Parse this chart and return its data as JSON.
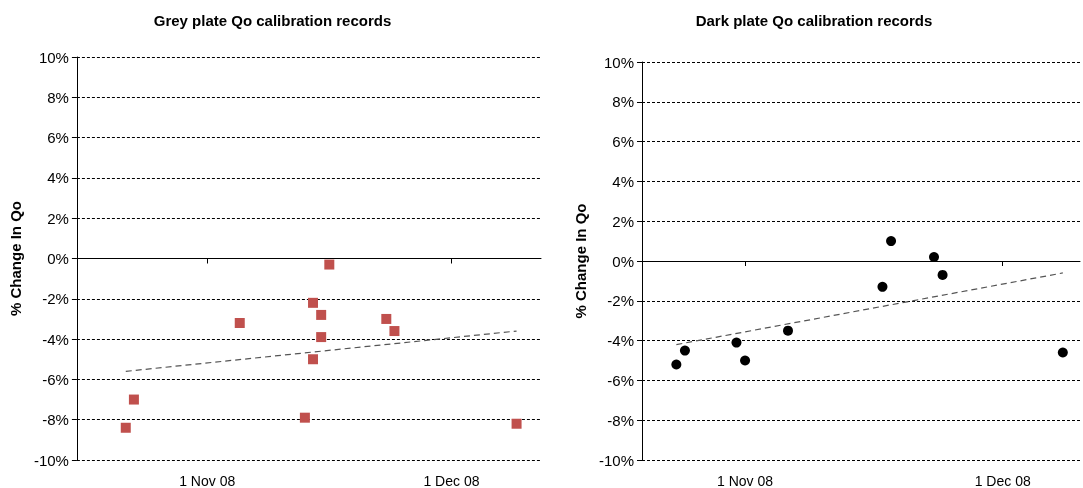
{
  "chart_data": [
    {
      "type": "scatter",
      "title": "Grey plate Qo calibration records",
      "ylabel": "% Change In Qo",
      "xlim": [
        "2008-10-16",
        "2008-12-12"
      ],
      "xticks": [
        {
          "value": "2008-11-01",
          "label": "1 Nov 08"
        },
        {
          "value": "2008-12-01",
          "label": "1 Dec 08"
        }
      ],
      "ylim": [
        -10,
        10
      ],
      "yticks": [
        {
          "value": -10,
          "label": "-10%"
        },
        {
          "value": -8,
          "label": "-8%"
        },
        {
          "value": -6,
          "label": "-6%"
        },
        {
          "value": -4,
          "label": "-4%"
        },
        {
          "value": -2,
          "label": "-2%"
        },
        {
          "value": 0,
          "label": "0%"
        },
        {
          "value": 2,
          "label": "2%"
        },
        {
          "value": 4,
          "label": "4%"
        },
        {
          "value": 6,
          "label": "6%"
        },
        {
          "value": 8,
          "label": "8%"
        },
        {
          "value": 10,
          "label": "10%"
        }
      ],
      "grid": "y",
      "marker": "square",
      "series": [
        {
          "color": "#c0504d",
          "x": [
            "2008-10-22",
            "2008-10-23",
            "2008-11-05",
            "2008-11-13",
            "2008-11-14",
            "2008-11-14",
            "2008-11-15",
            "2008-11-15",
            "2008-11-16",
            "2008-11-23",
            "2008-11-24",
            "2008-12-09"
          ],
          "values": [
            -8.4,
            -7.0,
            -3.2,
            -7.9,
            -2.2,
            -5.0,
            -2.8,
            -3.9,
            -0.3,
            -3.0,
            -3.6,
            -8.2
          ]
        },
        {
          "type": "line",
          "marker": "none",
          "color": "#555555",
          "line_style": "dashed",
          "x": [
            "2008-10-22",
            "2008-12-09"
          ],
          "values": [
            -5.6,
            -3.6
          ]
        }
      ]
    },
    {
      "type": "scatter",
      "title": "Dark plate Qo calibration records",
      "ylabel": "% Change In Qo",
      "xlim": [
        "2008-10-20",
        "2008-12-10"
      ],
      "xticks": [
        {
          "value": "2008-11-01",
          "label": "1 Nov 08"
        },
        {
          "value": "2008-12-01",
          "label": "1 Dec 08"
        }
      ],
      "ylim": [
        -10,
        10
      ],
      "yticks": [
        {
          "value": -10,
          "label": "-10%"
        },
        {
          "value": -8,
          "label": "-8%"
        },
        {
          "value": -6,
          "label": "-6%"
        },
        {
          "value": -4,
          "label": "-4%"
        },
        {
          "value": -2,
          "label": "-2%"
        },
        {
          "value": 0,
          "label": "0%"
        },
        {
          "value": 2,
          "label": "2%"
        },
        {
          "value": 4,
          "label": "4%"
        },
        {
          "value": 6,
          "label": "6%"
        },
        {
          "value": 8,
          "label": "8%"
        },
        {
          "value": 10,
          "label": "10%"
        }
      ],
      "grid": "y",
      "marker": "circle",
      "series": [
        {
          "color": "#000000",
          "x": [
            "2008-10-24",
            "2008-10-25",
            "2008-10-31",
            "2008-11-01",
            "2008-11-06",
            "2008-11-17",
            "2008-11-18",
            "2008-11-23",
            "2008-11-24",
            "2008-12-08"
          ],
          "values": [
            -5.2,
            -4.5,
            -4.1,
            -5.0,
            -3.5,
            -1.3,
            1.0,
            0.2,
            -0.7,
            -4.6
          ]
        },
        {
          "type": "line",
          "marker": "none",
          "color": "#555555",
          "line_style": "dashed",
          "x": [
            "2008-10-24",
            "2008-12-08"
          ],
          "values": [
            -4.2,
            -0.6
          ]
        }
      ]
    }
  ]
}
